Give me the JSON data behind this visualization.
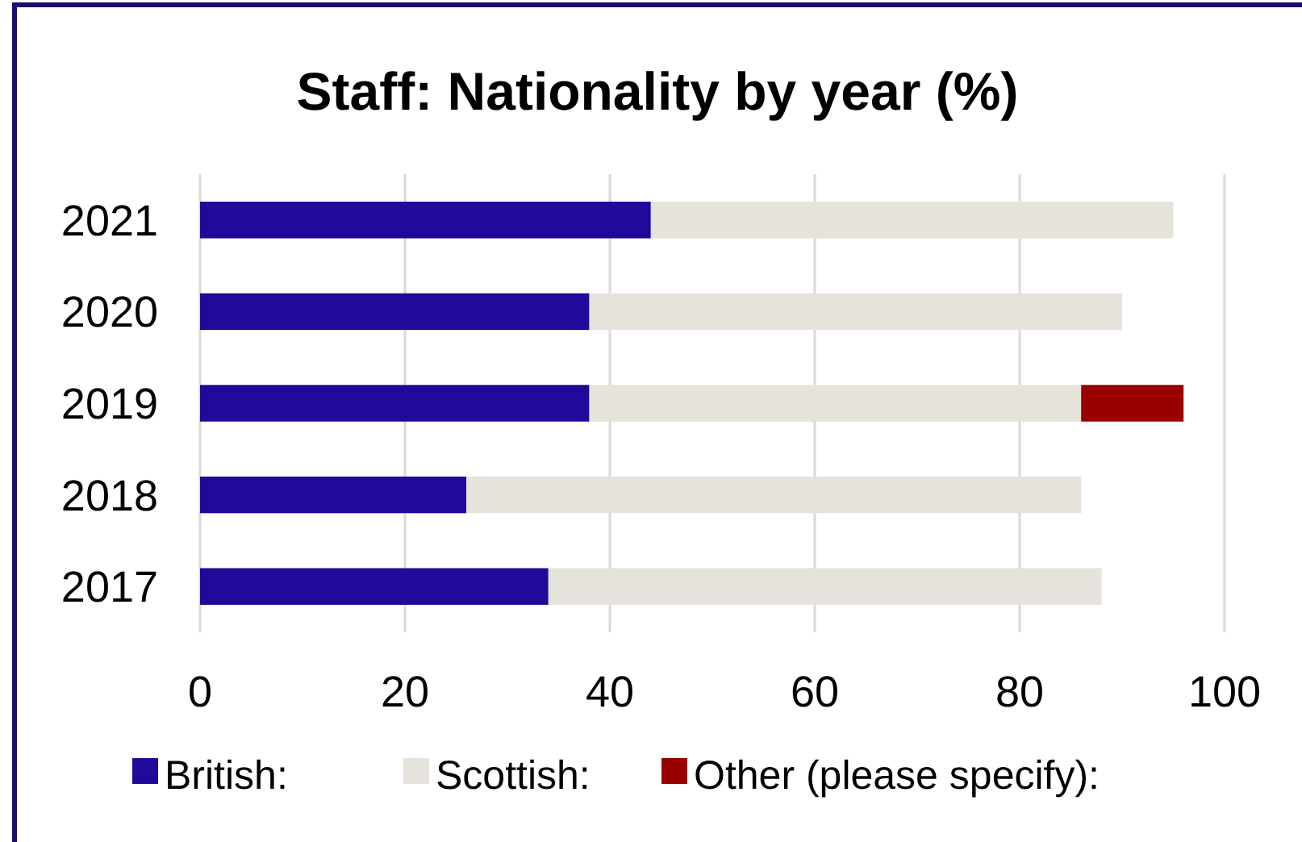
{
  "chart_data": {
    "type": "bar",
    "orientation": "horizontal",
    "stacked": true,
    "title": "Staff: Nationality by year (%)",
    "categories": [
      "2021",
      "2020",
      "2019",
      "2018",
      "2017"
    ],
    "series": [
      {
        "name": "British:",
        "color": "#1f0a99",
        "values": [
          44,
          38,
          38,
          26,
          34
        ]
      },
      {
        "name": "Scottish:",
        "color": "#e6e2dc",
        "values": [
          51,
          52,
          48,
          60,
          54
        ]
      },
      {
        "name": "Other (please specify):",
        "color": "#990000",
        "values": [
          null,
          null,
          10,
          null,
          null
        ]
      }
    ],
    "xlim": [
      0,
      100
    ],
    "xticks": [
      0,
      20,
      40,
      60,
      80,
      100
    ],
    "grid": "x",
    "legend": "bottom"
  }
}
